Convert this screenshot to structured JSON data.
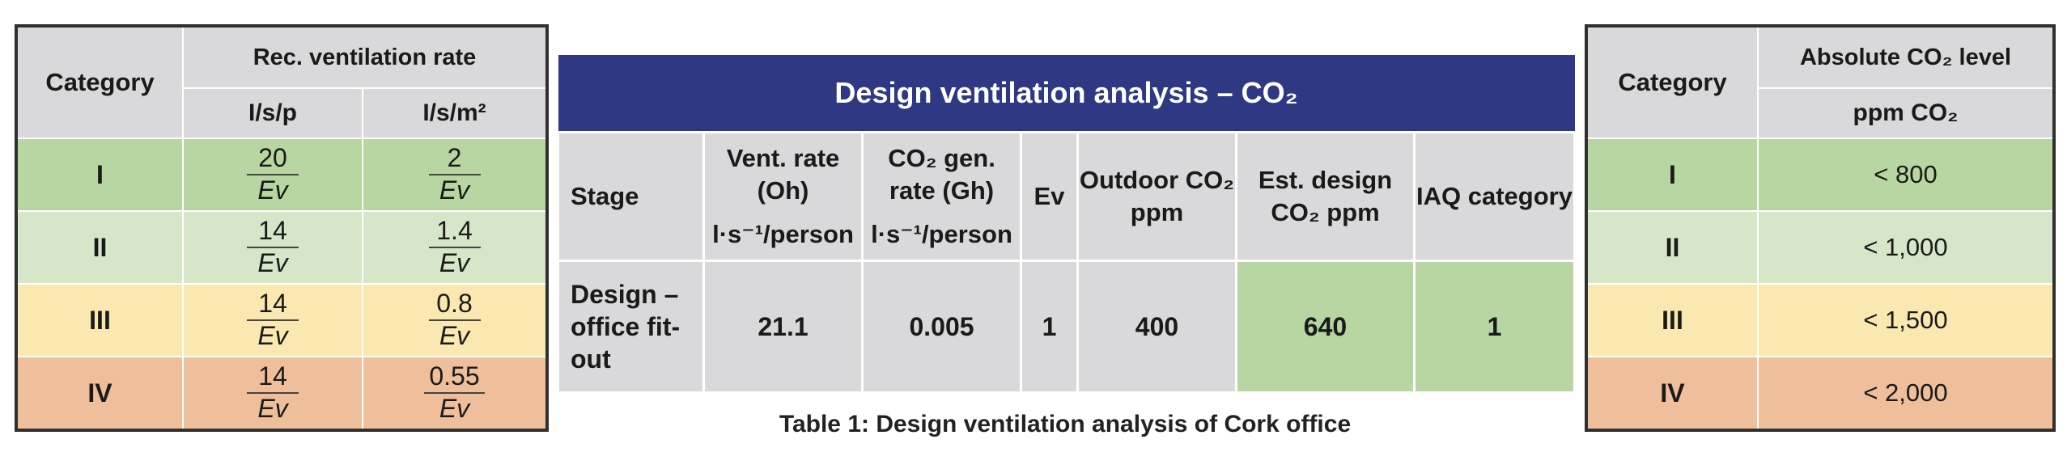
{
  "left_table": {
    "headers": {
      "category": "Category",
      "rec_vent_rate": "Rec. ventilation rate",
      "unit_per_person": "I/s/p",
      "unit_per_area": "I/s/m²"
    },
    "rows": [
      {
        "category": "I",
        "per_person": {
          "num": "20",
          "den": "Ev"
        },
        "per_area": {
          "num": "2",
          "den": "Ev"
        }
      },
      {
        "category": "II",
        "per_person": {
          "num": "14",
          "den": "Ev"
        },
        "per_area": {
          "num": "1.4",
          "den": "Ev"
        }
      },
      {
        "category": "III",
        "per_person": {
          "num": "14",
          "den": "Ev"
        },
        "per_area": {
          "num": "0.8",
          "den": "Ev"
        }
      },
      {
        "category": "IV",
        "per_person": {
          "num": "14",
          "den": "Ev"
        },
        "per_area": {
          "num": "0.55",
          "den": "Ev"
        }
      }
    ]
  },
  "middle_table": {
    "title": "Design ventilation analysis – CO₂",
    "headers": {
      "stage": "Stage",
      "vent_rate": "Vent. rate (Oh)",
      "vent_rate_unit": "l·s⁻¹/person",
      "co2_gen_rate": "CO₂ gen. rate (Gh)",
      "co2_gen_rate_unit": "l·s⁻¹/person",
      "ev": "Ev",
      "outdoor_co2": "Outdoor CO₂ ppm",
      "est_design_co2": "Est. design CO₂ ppm",
      "iaq_category": "IAQ category"
    },
    "row": {
      "stage": "Design – office fit-out",
      "vent_rate": "21.1",
      "co2_gen_rate": "0.005",
      "ev": "1",
      "outdoor_co2": "400",
      "est_design_co2": "640",
      "iaq_category": "1"
    },
    "caption": "Table 1: Design ventilation analysis of Cork office"
  },
  "right_table": {
    "headers": {
      "category": "Category",
      "absolute_co2": "Absolute CO₂ level",
      "unit": "ppm CO₂"
    },
    "rows": [
      {
        "category": "I",
        "value": "< 800"
      },
      {
        "category": "II",
        "value": "< 1,000"
      },
      {
        "category": "III",
        "value": "< 1,500"
      },
      {
        "category": "IV",
        "value": "< 2,000"
      }
    ]
  },
  "colors": {
    "header_gray": "#d9d9db",
    "title_blue": "#2e3883",
    "cat_I": "#b7d6a1",
    "cat_II": "#d6e7c9",
    "cat_III": "#fbe8b0",
    "cat_IV": "#efbe9b"
  }
}
